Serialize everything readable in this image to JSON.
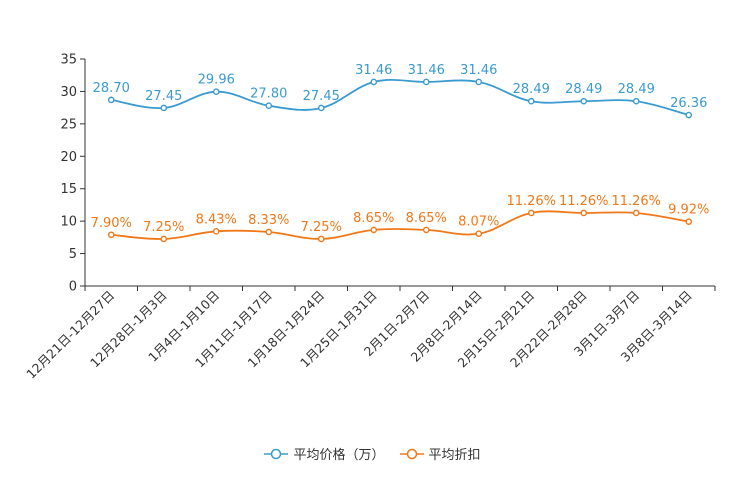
{
  "chart_data": {
    "type": "line",
    "title": "",
    "xlabel": "",
    "ylabel": "",
    "ylim": [
      0,
      35
    ],
    "yticks": [
      0,
      5,
      10,
      15,
      20,
      25,
      30,
      35
    ],
    "categories": [
      "12月21日-12月27日",
      "12月28日-1月3日",
      "1月4日-1月10日",
      "1月11日-1月17日",
      "1月18日-1月24日",
      "1月25日-1月31日",
      "2月1日-2月7日",
      "2月8日-2月14日",
      "2月15日-2月21日",
      "2月22日-2月28日",
      "3月1日-3月7日",
      "3月8日-3月14日"
    ],
    "series": [
      {
        "name": "平均价格（万）",
        "color": "#3a9bd0",
        "values": [
          28.7,
          27.45,
          29.96,
          27.8,
          27.45,
          31.46,
          31.46,
          31.46,
          28.49,
          28.49,
          28.49,
          26.36
        ],
        "labels": [
          "28.70",
          "27.45",
          "29.96",
          "27.80",
          "27.45",
          "31.46",
          "31.46",
          "31.46",
          "28.49",
          "28.49",
          "28.49",
          "26.36"
        ]
      },
      {
        "name": "平均折扣",
        "color": "#f07818",
        "values": [
          7.9,
          7.25,
          8.43,
          8.33,
          7.25,
          8.65,
          8.65,
          8.07,
          11.26,
          11.26,
          11.26,
          9.92
        ],
        "labels": [
          "7.90%",
          "7.25%",
          "8.43%",
          "8.33%",
          "7.25%",
          "8.65%",
          "8.65%",
          "8.07%",
          "11.26%",
          "11.26%",
          "11.26%",
          "9.92%"
        ]
      }
    ],
    "legend_position": "bottom",
    "grid": false
  }
}
